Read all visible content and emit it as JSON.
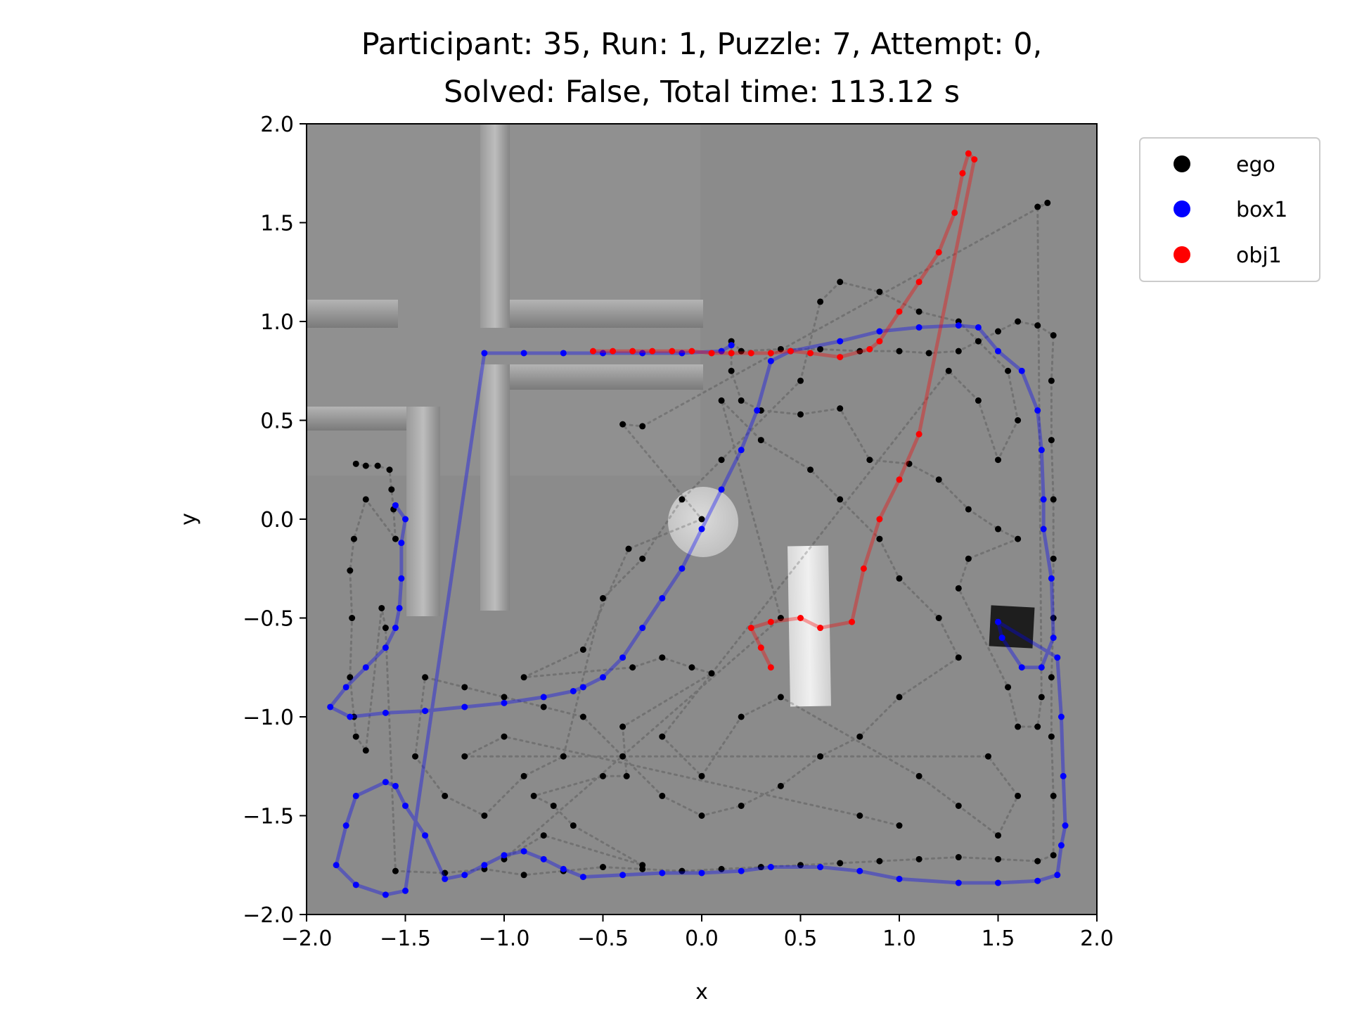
{
  "chart_data": {
    "type": "scatter",
    "title_line1": "Participant: 35, Run: 1, Puzzle: 7, Attempt: 0,",
    "title_line2": "Solved: False, Total time: 113.12 s",
    "xlabel": "x",
    "ylabel": "y",
    "xlim": [
      -2.0,
      2.0
    ],
    "ylim": [
      -2.0,
      2.0
    ],
    "x_ticks": [
      -2.0,
      -1.5,
      -1.0,
      -0.5,
      0.0,
      0.5,
      1.0,
      1.5,
      2.0
    ],
    "y_ticks": [
      -2.0,
      -1.5,
      -1.0,
      -0.5,
      0.0,
      0.5,
      1.0,
      1.5,
      2.0
    ],
    "x_tick_labels": [
      "−2.0",
      "−1.5",
      "−1.0",
      "−0.5",
      "0.0",
      "0.5",
      "1.0",
      "1.5",
      "2.0"
    ],
    "y_tick_labels": [
      "−2.0",
      "−1.5",
      "−1.0",
      "−0.5",
      "0.0",
      "0.5",
      "1.0",
      "1.5",
      "2.0"
    ],
    "legend_position": "outside-top-right",
    "background_image": "top-down grey room render: wall segments upper-left, light disc near (0,0), white bar near (0.5,-0.7), dark box near (1.6,-0.55)",
    "series": [
      {
        "name": "ego",
        "color": "#000000",
        "points": [
          [
            -1.75,
            0.28
          ],
          [
            -1.7,
            0.27
          ],
          [
            -1.64,
            0.27
          ],
          [
            -1.58,
            0.25
          ],
          [
            -1.57,
            0.15
          ],
          [
            -1.56,
            0.05
          ],
          [
            -1.55,
            -0.1
          ],
          [
            -1.7,
            0.1
          ],
          [
            -1.76,
            -0.1
          ],
          [
            -1.78,
            -0.26
          ],
          [
            -1.77,
            -0.5
          ],
          [
            -1.78,
            -0.8
          ],
          [
            -1.76,
            -1.0
          ],
          [
            -1.75,
            -1.1
          ],
          [
            -1.7,
            -1.17
          ],
          [
            -1.62,
            -0.45
          ],
          [
            -1.6,
            -0.55
          ],
          [
            -1.55,
            -1.78
          ],
          [
            -1.3,
            -1.79
          ],
          [
            -1.1,
            -1.77
          ],
          [
            -0.9,
            -1.8
          ],
          [
            -0.7,
            -1.78
          ],
          [
            -0.5,
            -1.76
          ],
          [
            -0.3,
            -1.77
          ],
          [
            -0.1,
            -1.78
          ],
          [
            0.1,
            -1.77
          ],
          [
            0.3,
            -1.76
          ],
          [
            0.5,
            -1.75
          ],
          [
            0.7,
            -1.74
          ],
          [
            0.9,
            -1.73
          ],
          [
            1.1,
            -1.72
          ],
          [
            1.3,
            -1.71
          ],
          [
            1.5,
            -1.72
          ],
          [
            1.7,
            -1.73
          ],
          [
            1.78,
            -1.7
          ],
          [
            1.78,
            -1.4
          ],
          [
            1.77,
            -1.1
          ],
          [
            1.77,
            -0.8
          ],
          [
            1.78,
            -0.5
          ],
          [
            1.78,
            -0.2
          ],
          [
            1.78,
            0.1
          ],
          [
            1.77,
            0.4
          ],
          [
            1.77,
            0.7
          ],
          [
            1.78,
            0.93
          ],
          [
            1.7,
            0.98
          ],
          [
            1.6,
            1.0
          ],
          [
            1.5,
            0.95
          ],
          [
            1.4,
            0.9
          ],
          [
            1.3,
            0.85
          ],
          [
            1.15,
            0.84
          ],
          [
            1.0,
            0.85
          ],
          [
            0.8,
            0.85
          ],
          [
            0.6,
            0.86
          ],
          [
            0.4,
            0.86
          ],
          [
            0.2,
            0.85
          ],
          [
            0.15,
            0.9
          ],
          [
            0.15,
            0.75
          ],
          [
            0.2,
            0.6
          ],
          [
            0.3,
            0.55
          ],
          [
            0.5,
            0.53
          ],
          [
            0.7,
            0.56
          ],
          [
            0.85,
            0.3
          ],
          [
            1.05,
            0.28
          ],
          [
            1.2,
            0.2
          ],
          [
            1.35,
            0.05
          ],
          [
            1.5,
            -0.05
          ],
          [
            1.6,
            -0.1
          ],
          [
            1.35,
            -0.2
          ],
          [
            1.3,
            -0.35
          ],
          [
            1.55,
            -0.85
          ],
          [
            1.6,
            -1.05
          ],
          [
            1.7,
            -1.05
          ],
          [
            1.72,
            -0.9
          ],
          [
            1.7,
            1.58
          ],
          [
            1.75,
            1.6
          ],
          [
            -0.3,
            0.47
          ],
          [
            -0.4,
            0.48
          ],
          [
            0.0,
            0.0
          ],
          [
            -0.37,
            -0.15
          ],
          [
            -0.6,
            -0.66
          ],
          [
            -0.9,
            -0.8
          ],
          [
            -0.35,
            -0.75
          ],
          [
            -0.2,
            -0.7
          ],
          [
            -0.05,
            -0.75
          ],
          [
            0.05,
            -0.78
          ],
          [
            -0.4,
            -1.05
          ],
          [
            -0.38,
            -1.3
          ],
          [
            -0.5,
            -1.3
          ],
          [
            -0.85,
            -1.4
          ],
          [
            -0.75,
            -1.45
          ],
          [
            -0.65,
            -1.55
          ],
          [
            -0.3,
            -1.75
          ],
          [
            -0.8,
            -1.6
          ],
          [
            -1.0,
            -1.72
          ],
          [
            0.4,
            -0.5
          ],
          [
            0.1,
            0.6
          ],
          [
            0.3,
            0.4
          ],
          [
            0.55,
            0.25
          ],
          [
            0.7,
            0.1
          ],
          [
            0.9,
            -0.1
          ],
          [
            1.0,
            -0.3
          ],
          [
            1.2,
            -0.5
          ],
          [
            1.3,
            -0.7
          ],
          [
            1.0,
            -0.9
          ],
          [
            0.8,
            -1.1
          ],
          [
            0.6,
            -1.2
          ],
          [
            0.4,
            -1.35
          ],
          [
            0.2,
            -1.45
          ],
          [
            0.0,
            -1.5
          ],
          [
            -0.2,
            -1.4
          ],
          [
            -0.4,
            -1.2
          ],
          [
            -0.6,
            -1.0
          ],
          [
            -0.8,
            -0.95
          ],
          [
            -1.0,
            -0.9
          ],
          [
            -1.2,
            -0.85
          ],
          [
            -1.4,
            -0.8
          ],
          [
            -1.45,
            -1.2
          ],
          [
            -1.3,
            -1.4
          ],
          [
            -1.1,
            -1.5
          ],
          [
            -0.9,
            -1.3
          ],
          [
            -0.7,
            -1.2
          ],
          [
            -0.5,
            -0.4
          ],
          [
            -0.3,
            -0.2
          ],
          [
            -0.1,
            0.1
          ],
          [
            0.1,
            0.3
          ],
          [
            0.5,
            0.7
          ],
          [
            0.6,
            1.1
          ],
          [
            0.7,
            1.2
          ],
          [
            0.9,
            1.15
          ],
          [
            1.1,
            1.05
          ],
          [
            1.3,
            1.0
          ],
          [
            1.55,
            0.75
          ],
          [
            1.6,
            0.5
          ],
          [
            1.5,
            0.3
          ],
          [
            1.4,
            0.6
          ],
          [
            1.25,
            0.75
          ],
          [
            -0.2,
            -1.1
          ],
          [
            0.0,
            -1.3
          ],
          [
            0.2,
            -1.0
          ],
          [
            0.4,
            -0.9
          ],
          [
            1.1,
            -1.3
          ],
          [
            1.3,
            -1.45
          ],
          [
            1.5,
            -1.6
          ],
          [
            1.6,
            -1.4
          ],
          [
            1.45,
            -1.2
          ],
          [
            -1.2,
            -1.2
          ],
          [
            -1.0,
            -1.1
          ],
          [
            0.8,
            -1.5
          ],
          [
            1.0,
            -1.55
          ]
        ]
      },
      {
        "name": "box1",
        "color": "#0000ff",
        "points": [
          [
            -1.55,
            0.07
          ],
          [
            -1.5,
            0.0
          ],
          [
            -1.52,
            -0.12
          ],
          [
            -1.52,
            -0.3
          ],
          [
            -1.53,
            -0.45
          ],
          [
            -1.55,
            -0.55
          ],
          [
            -1.6,
            -0.65
          ],
          [
            -1.7,
            -0.75
          ],
          [
            -1.8,
            -0.85
          ],
          [
            -1.88,
            -0.95
          ],
          [
            -1.78,
            -1.0
          ],
          [
            -1.6,
            -0.98
          ],
          [
            -1.4,
            -0.97
          ],
          [
            -1.2,
            -0.95
          ],
          [
            -1.0,
            -0.93
          ],
          [
            -0.8,
            -0.9
          ],
          [
            -0.65,
            -0.87
          ],
          [
            -0.6,
            -0.85
          ],
          [
            -0.5,
            -0.8
          ],
          [
            -0.4,
            -0.7
          ],
          [
            -0.3,
            -0.55
          ],
          [
            -0.2,
            -0.4
          ],
          [
            -0.1,
            -0.25
          ],
          [
            0.0,
            -0.05
          ],
          [
            0.1,
            0.15
          ],
          [
            0.2,
            0.35
          ],
          [
            0.28,
            0.55
          ],
          [
            0.35,
            0.8
          ],
          [
            0.45,
            0.85
          ],
          [
            0.7,
            0.9
          ],
          [
            0.9,
            0.95
          ],
          [
            1.1,
            0.97
          ],
          [
            1.3,
            0.98
          ],
          [
            1.4,
            0.97
          ],
          [
            1.5,
            0.85
          ],
          [
            1.62,
            0.75
          ],
          [
            1.7,
            0.55
          ],
          [
            1.72,
            0.35
          ],
          [
            1.73,
            0.1
          ],
          [
            1.73,
            -0.05
          ],
          [
            1.77,
            -0.3
          ],
          [
            1.78,
            -0.6
          ],
          [
            1.72,
            -0.75
          ],
          [
            1.62,
            -0.75
          ],
          [
            1.52,
            -0.6
          ],
          [
            1.5,
            -0.52
          ],
          [
            1.8,
            -0.7
          ],
          [
            1.82,
            -1.0
          ],
          [
            1.83,
            -1.3
          ],
          [
            1.84,
            -1.55
          ],
          [
            1.82,
            -1.65
          ],
          [
            1.8,
            -1.8
          ],
          [
            1.7,
            -1.83
          ],
          [
            1.5,
            -1.84
          ],
          [
            1.3,
            -1.84
          ],
          [
            1.0,
            -1.82
          ],
          [
            0.8,
            -1.78
          ],
          [
            0.6,
            -1.76
          ],
          [
            0.35,
            -1.76
          ],
          [
            0.2,
            -1.78
          ],
          [
            0.0,
            -1.79
          ],
          [
            -0.2,
            -1.79
          ],
          [
            -0.4,
            -1.8
          ],
          [
            -0.6,
            -1.81
          ],
          [
            -0.7,
            -1.77
          ],
          [
            -0.8,
            -1.72
          ],
          [
            -0.9,
            -1.68
          ],
          [
            -1.0,
            -1.7
          ],
          [
            -1.1,
            -1.75
          ],
          [
            -1.2,
            -1.8
          ],
          [
            -1.3,
            -1.82
          ],
          [
            -1.4,
            -1.6
          ],
          [
            -1.5,
            -1.45
          ],
          [
            -1.55,
            -1.35
          ],
          [
            -1.6,
            -1.33
          ],
          [
            -1.75,
            -1.4
          ],
          [
            -1.8,
            -1.55
          ],
          [
            -1.85,
            -1.75
          ],
          [
            -1.75,
            -1.85
          ],
          [
            -1.6,
            -1.9
          ],
          [
            -1.5,
            -1.88
          ],
          [
            -1.1,
            0.84
          ],
          [
            -0.9,
            0.84
          ],
          [
            -0.7,
            0.84
          ],
          [
            -0.5,
            0.84
          ],
          [
            -0.3,
            0.84
          ],
          [
            -0.1,
            0.84
          ],
          [
            0.1,
            0.85
          ],
          [
            0.15,
            0.88
          ]
        ]
      },
      {
        "name": "obj1",
        "color": "#ff0000",
        "points": [
          [
            -0.55,
            0.85
          ],
          [
            -0.45,
            0.85
          ],
          [
            -0.35,
            0.85
          ],
          [
            -0.25,
            0.85
          ],
          [
            -0.15,
            0.85
          ],
          [
            -0.05,
            0.85
          ],
          [
            0.05,
            0.84
          ],
          [
            0.15,
            0.84
          ],
          [
            0.25,
            0.84
          ],
          [
            0.35,
            0.84
          ],
          [
            0.45,
            0.85
          ],
          [
            0.55,
            0.84
          ],
          [
            0.7,
            0.82
          ],
          [
            0.85,
            0.86
          ],
          [
            0.9,
            0.9
          ],
          [
            1.0,
            1.05
          ],
          [
            1.1,
            1.2
          ],
          [
            1.2,
            1.35
          ],
          [
            1.28,
            1.55
          ],
          [
            1.32,
            1.75
          ],
          [
            1.35,
            1.85
          ],
          [
            1.38,
            1.82
          ],
          [
            1.1,
            0.43
          ],
          [
            1.0,
            0.2
          ],
          [
            0.9,
            0.0
          ],
          [
            0.82,
            -0.25
          ],
          [
            0.76,
            -0.52
          ],
          [
            0.6,
            -0.55
          ],
          [
            0.5,
            -0.5
          ],
          [
            0.35,
            -0.52
          ],
          [
            0.25,
            -0.55
          ],
          [
            0.3,
            -0.65
          ],
          [
            0.35,
            -0.75
          ]
        ]
      }
    ]
  }
}
